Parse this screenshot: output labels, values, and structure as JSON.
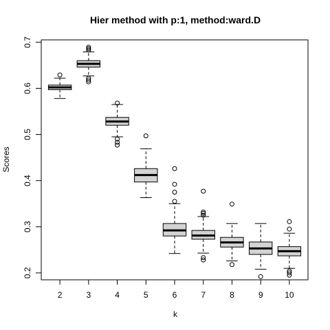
{
  "chart_data": {
    "type": "boxplot",
    "title": "Hier method with p:1, method:ward.D",
    "xlabel": "k",
    "ylabel": "Scores",
    "ylim": [
      0.185,
      0.705
    ],
    "yticks": [
      0.2,
      0.3,
      0.4,
      0.5,
      0.6,
      0.7
    ],
    "ytick_labels": [
      "0.2",
      "0.3",
      "0.4",
      "0.5",
      "0.6",
      "0.7"
    ],
    "categories": [
      "2",
      "3",
      "4",
      "5",
      "6",
      "7",
      "8",
      "9",
      "10"
    ],
    "box_color": "#d3d3d3",
    "boxes": [
      {
        "k": "2",
        "lower_whisker": 0.578,
        "q1": 0.597,
        "median": 0.602,
        "q3": 0.607,
        "upper_whisker": 0.622,
        "outliers": [
          0.629
        ]
      },
      {
        "k": "3",
        "lower_whisker": 0.627,
        "q1": 0.646,
        "median": 0.653,
        "q3": 0.66,
        "upper_whisker": 0.679,
        "outliers": [
          0.614,
          0.618,
          0.622,
          0.683,
          0.686,
          0.689
        ]
      },
      {
        "k": "4",
        "lower_whisker": 0.495,
        "q1": 0.52,
        "median": 0.528,
        "q3": 0.537,
        "upper_whisker": 0.565,
        "outliers": [
          0.477,
          0.483,
          0.49,
          0.568
        ]
      },
      {
        "k": "5",
        "lower_whisker": 0.363,
        "q1": 0.397,
        "median": 0.412,
        "q3": 0.426,
        "upper_whisker": 0.469,
        "outliers": [
          0.497
        ]
      },
      {
        "k": "6",
        "lower_whisker": 0.242,
        "q1": 0.28,
        "median": 0.292,
        "q3": 0.307,
        "upper_whisker": 0.35,
        "outliers": [
          0.355,
          0.375,
          0.392,
          0.426
        ]
      },
      {
        "k": "7",
        "lower_whisker": 0.243,
        "q1": 0.273,
        "median": 0.281,
        "q3": 0.292,
        "upper_whisker": 0.322,
        "outliers": [
          0.228,
          0.233,
          0.325,
          0.329,
          0.332,
          0.377
        ]
      },
      {
        "k": "8",
        "lower_whisker": 0.226,
        "q1": 0.256,
        "median": 0.266,
        "q3": 0.277,
        "upper_whisker": 0.307,
        "outliers": [
          0.218,
          0.349
        ]
      },
      {
        "k": "9",
        "lower_whisker": 0.208,
        "q1": 0.24,
        "median": 0.253,
        "q3": 0.267,
        "upper_whisker": 0.307,
        "outliers": [
          0.192
        ]
      },
      {
        "k": "10",
        "lower_whisker": 0.21,
        "q1": 0.237,
        "median": 0.247,
        "q3": 0.257,
        "upper_whisker": 0.286,
        "outliers": [
          0.195,
          0.2,
          0.204,
          0.295,
          0.311
        ]
      }
    ]
  }
}
